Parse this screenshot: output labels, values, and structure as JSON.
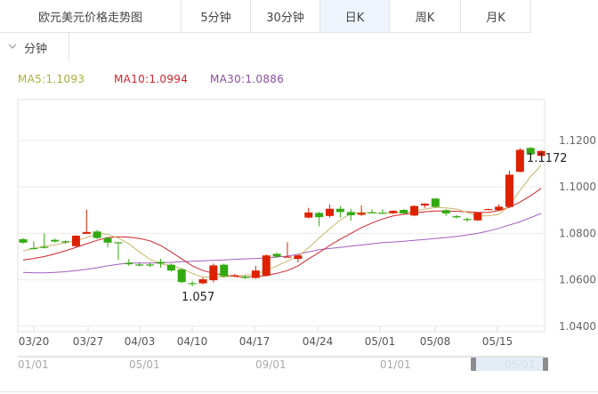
{
  "tabs": {
    "title": "欧元美元价格走势图",
    "items": [
      {
        "label": "5分钟"
      },
      {
        "label": "30分钟"
      },
      {
        "label": "日K",
        "active": true
      },
      {
        "label": "周K"
      },
      {
        "label": "月K"
      }
    ]
  },
  "dropdown": {
    "icon": "chevron-down-icon",
    "label": "分钟"
  },
  "indicators": {
    "ma5": "MA5:1.1093",
    "ma10": "MA10:1.0994",
    "ma30": "MA30:1.0886"
  },
  "colors": {
    "up": "#dd2200",
    "down": "#33aa11",
    "ma5": "#c8b768",
    "ma10": "#d3232c",
    "ma30": "#a35fbf",
    "grid": "#ebebeb",
    "active_tab_bg": "#eef5fd"
  },
  "navigator": {
    "labels": [
      "01/01",
      "05/01",
      "09/01",
      "01/01",
      "05/01"
    ]
  },
  "chart_data": {
    "type": "candlestick",
    "title": "欧元美元价格走势图",
    "ylim": [
      1.04,
      1.12
    ],
    "yticks": [
      "1.1200",
      "1.1000",
      "1.0800",
      "1.0600",
      "1.0400"
    ],
    "xticks": [
      "03/20",
      "03/27",
      "04/03",
      "04/10",
      "04/17",
      "04/24",
      "05/01",
      "05/08",
      "05/15"
    ],
    "annotations": [
      {
        "text": "1.057",
        "type": "min"
      },
      {
        "text": "1.1172",
        "type": "max"
      }
    ],
    "legend": [
      "MA5",
      "MA10",
      "MA30"
    ],
    "candles": [
      {
        "o": 1.0775,
        "c": 1.076,
        "h": 1.078,
        "l": 1.0755
      },
      {
        "o": 1.0737,
        "c": 1.0735,
        "h": 1.0765,
        "l": 1.073
      },
      {
        "o": 1.0742,
        "c": 1.074,
        "h": 1.08,
        "l": 1.0735
      },
      {
        "o": 1.0772,
        "c": 1.0765,
        "h": 1.0778,
        "l": 1.076
      },
      {
        "o": 1.0766,
        "c": 1.0765,
        "h": 1.077,
        "l": 1.0755
      },
      {
        "o": 1.0745,
        "c": 1.079,
        "h": 1.0792,
        "l": 1.074
      },
      {
        "o": 1.0798,
        "c": 1.0806,
        "h": 1.0902,
        "l": 1.0798
      },
      {
        "o": 1.0808,
        "c": 1.078,
        "h": 1.0815,
        "l": 1.0775
      },
      {
        "o": 1.078,
        "c": 1.076,
        "h": 1.0785,
        "l": 1.074
      },
      {
        "o": 1.0762,
        "c": 1.076,
        "h": 1.0762,
        "l": 1.0685
      },
      {
        "o": 1.0673,
        "c": 1.0667,
        "h": 1.069,
        "l": 1.066
      },
      {
        "o": 1.0666,
        "c": 1.0665,
        "h": 1.0675,
        "l": 1.0657
      },
      {
        "o": 1.0666,
        "c": 1.0665,
        "h": 1.0675,
        "l": 1.0655
      },
      {
        "o": 1.0677,
        "c": 1.067,
        "h": 1.069,
        "l": 1.0652
      },
      {
        "o": 1.0665,
        "c": 1.064,
        "h": 1.067,
        "l": 1.0635
      },
      {
        "o": 1.0645,
        "c": 1.059,
        "h": 1.065,
        "l": 1.0585
      },
      {
        "o": 1.0586,
        "c": 1.0584,
        "h": 1.0595,
        "l": 1.0572
      },
      {
        "o": 1.0585,
        "c": 1.0602,
        "h": 1.061,
        "l": 1.058
      },
      {
        "o": 1.0598,
        "c": 1.0662,
        "h": 1.067,
        "l": 1.0588
      },
      {
        "o": 1.0665,
        "c": 1.0615,
        "h": 1.067,
        "l": 1.061
      },
      {
        "o": 1.0616,
        "c": 1.062,
        "h": 1.0625,
        "l": 1.0614
      },
      {
        "o": 1.0614,
        "c": 1.0608,
        "h": 1.062,
        "l": 1.0604
      },
      {
        "o": 1.0608,
        "c": 1.064,
        "h": 1.066,
        "l": 1.0604
      },
      {
        "o": 1.0618,
        "c": 1.0705,
        "h": 1.071,
        "l": 1.0614
      },
      {
        "o": 1.0712,
        "c": 1.07,
        "h": 1.0716,
        "l": 1.0695
      },
      {
        "o": 1.0698,
        "c": 1.07,
        "h": 1.0762,
        "l": 1.0696
      },
      {
        "o": 1.069,
        "c": 1.0705,
        "h": 1.071,
        "l": 1.0675
      },
      {
        "o": 1.0868,
        "c": 1.089,
        "h": 1.091,
        "l": 1.0865
      },
      {
        "o": 1.0888,
        "c": 1.087,
        "h": 1.0893,
        "l": 1.083
      },
      {
        "o": 1.0875,
        "c": 1.0906,
        "h": 1.0925,
        "l": 1.0868
      },
      {
        "o": 1.0906,
        "c": 1.0892,
        "h": 1.0918,
        "l": 1.0868
      },
      {
        "o": 1.0892,
        "c": 1.0878,
        "h": 1.0905,
        "l": 1.0855
      },
      {
        "o": 1.088,
        "c": 1.0888,
        "h": 1.092,
        "l": 1.0875
      },
      {
        "o": 1.0891,
        "c": 1.089,
        "h": 1.0904,
        "l": 1.0888
      },
      {
        "o": 1.0889,
        "c": 1.0888,
        "h": 1.0904,
        "l": 1.0884
      },
      {
        "o": 1.0887,
        "c": 1.0897,
        "h": 1.09,
        "l": 1.0884
      },
      {
        "o": 1.0901,
        "c": 1.0886,
        "h": 1.0905,
        "l": 1.0884
      },
      {
        "o": 1.0877,
        "c": 1.0918,
        "h": 1.0921,
        "l": 1.0874
      },
      {
        "o": 1.092,
        "c": 1.0928,
        "h": 1.093,
        "l": 1.091
      },
      {
        "o": 1.095,
        "c": 1.0914,
        "h": 1.0952,
        "l": 1.0912
      },
      {
        "o": 1.09,
        "c": 1.0886,
        "h": 1.0904,
        "l": 1.0876
      },
      {
        "o": 1.0874,
        "c": 1.0869,
        "h": 1.088,
        "l": 1.0864
      },
      {
        "o": 1.0862,
        "c": 1.086,
        "h": 1.0868,
        "l": 1.085
      },
      {
        "o": 1.0856,
        "c": 1.089,
        "h": 1.0892,
        "l": 1.0854
      },
      {
        "o": 1.0901,
        "c": 1.0905,
        "h": 1.0907,
        "l": 1.09
      },
      {
        "o": 1.09,
        "c": 1.0915,
        "h": 1.0925,
        "l": 1.0898
      },
      {
        "o": 1.0914,
        "c": 1.1053,
        "h": 1.107,
        "l": 1.0912
      },
      {
        "o": 1.1065,
        "c": 1.116,
        "h": 1.1168,
        "l": 1.1063
      },
      {
        "o": 1.1168,
        "c": 1.114,
        "h": 1.1172,
        "l": 1.1108
      },
      {
        "o": 1.1134,
        "c": 1.1155,
        "h": 1.1158,
        "l": 1.113
      }
    ],
    "ma5": [
      1.0725,
      1.0735,
      1.0745,
      1.075,
      1.076,
      1.0768,
      1.0782,
      1.0798,
      1.0796,
      1.078,
      1.0755,
      1.072,
      1.0688,
      1.0668,
      1.066,
      1.0648,
      1.0628,
      1.0612,
      1.0612,
      1.0613,
      1.0616,
      1.062,
      1.0625,
      1.064,
      1.066,
      1.068,
      1.07,
      1.0738,
      1.078,
      1.082,
      1.0858,
      1.0886,
      1.089,
      1.0888,
      1.0886,
      1.0888,
      1.089,
      1.0895,
      1.0905,
      1.0912,
      1.091,
      1.0905,
      1.089,
      1.0876,
      1.0876,
      1.0882,
      1.092,
      1.0985,
      1.1045,
      1.1093
    ],
    "ma10": [
      1.0685,
      1.0692,
      1.07,
      1.0712,
      1.0725,
      1.074,
      1.0755,
      1.077,
      1.0782,
      1.0785,
      1.0784,
      1.0778,
      1.0768,
      1.0748,
      1.072,
      1.069,
      1.066,
      1.064,
      1.0628,
      1.062,
      1.0614,
      1.0612,
      1.0614,
      1.0618,
      1.0628,
      1.064,
      1.066,
      1.069,
      1.0718,
      1.0748,
      1.0775,
      1.08,
      1.0825,
      1.0845,
      1.0862,
      1.0875,
      1.0882,
      1.0888,
      1.0893,
      1.0896,
      1.0896,
      1.0895,
      1.0893,
      1.089,
      1.089,
      1.0898,
      1.0912,
      1.0935,
      1.0962,
      1.0994
    ],
    "ma30": [
      1.0632,
      1.063,
      1.063,
      1.0632,
      1.0635,
      1.064,
      1.0645,
      1.0652,
      1.066,
      1.0667,
      1.0672,
      1.0672,
      1.0672,
      1.0673,
      1.0675,
      1.0678,
      1.068,
      1.0682,
      1.0684,
      1.0686,
      1.0688,
      1.069,
      1.0692,
      1.0694,
      1.0698,
      1.0702,
      1.071,
      1.072,
      1.073,
      1.0735,
      1.074,
      1.0745,
      1.075,
      1.0755,
      1.076,
      1.0763,
      1.0766,
      1.077,
      1.0774,
      1.0778,
      1.0782,
      1.0787,
      1.0793,
      1.08,
      1.081,
      1.0822,
      1.0836,
      1.085,
      1.0868,
      1.0886
    ]
  }
}
